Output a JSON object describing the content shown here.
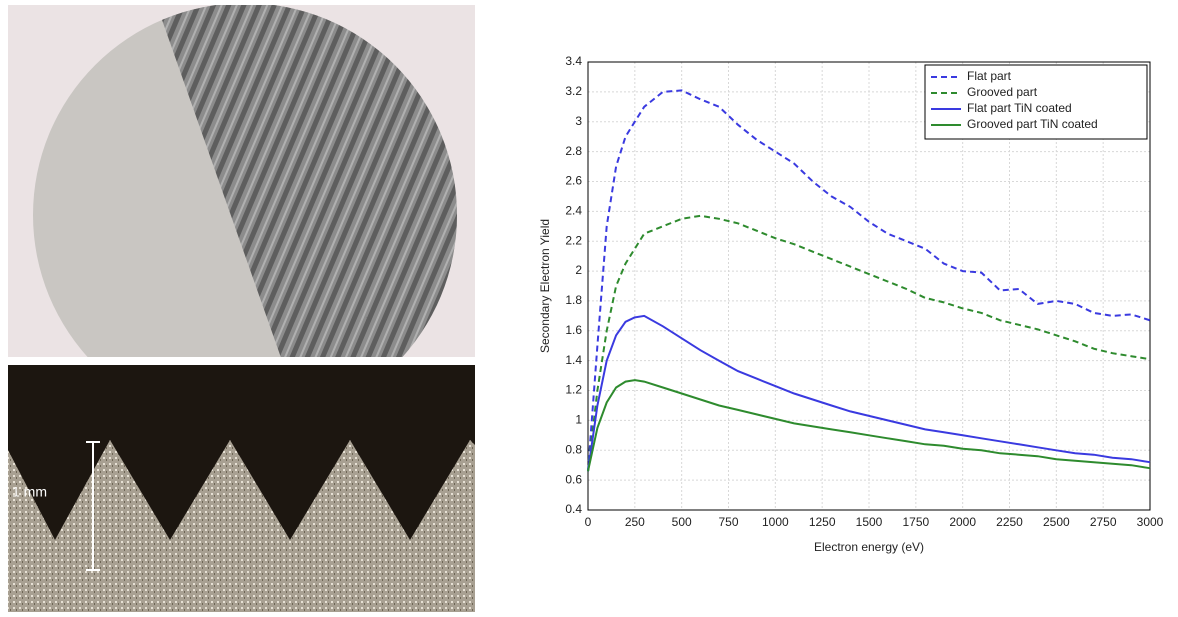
{
  "photo_annotation": "1 mm",
  "chart_data": {
    "type": "line",
    "xlabel": "Electron energy (eV)",
    "ylabel": "Secondary Electron Yield",
    "x": [
      0,
      50,
      100,
      150,
      200,
      250,
      300,
      400,
      500,
      600,
      700,
      800,
      900,
      1000,
      1100,
      1200,
      1300,
      1400,
      1500,
      1600,
      1700,
      1800,
      1900,
      2000,
      2100,
      2200,
      2300,
      2400,
      2500,
      2600,
      2700,
      2800,
      2900,
      3000
    ],
    "series": [
      {
        "name": "Flat part",
        "color": "#3a3ae0",
        "linestyle": "dashed",
        "values": [
          0.66,
          1.5,
          2.3,
          2.7,
          2.9,
          3.0,
          3.1,
          3.2,
          3.21,
          3.15,
          3.1,
          2.98,
          2.88,
          2.8,
          2.72,
          2.6,
          2.5,
          2.43,
          2.33,
          2.25,
          2.2,
          2.15,
          2.05,
          2.0,
          1.99,
          1.87,
          1.88,
          1.78,
          1.8,
          1.78,
          1.72,
          1.7,
          1.71,
          1.67
        ]
      },
      {
        "name": "Grooved part",
        "color": "#2e8b2e",
        "linestyle": "dashed",
        "values": [
          0.66,
          1.2,
          1.6,
          1.9,
          2.05,
          2.15,
          2.25,
          2.3,
          2.35,
          2.37,
          2.35,
          2.32,
          2.27,
          2.22,
          2.18,
          2.13,
          2.08,
          2.03,
          1.98,
          1.93,
          1.88,
          1.82,
          1.79,
          1.75,
          1.72,
          1.67,
          1.64,
          1.61,
          1.57,
          1.53,
          1.48,
          1.45,
          1.43,
          1.41
        ]
      },
      {
        "name": "Flat part TiN coated",
        "color": "#3a3ae0",
        "linestyle": "solid",
        "values": [
          0.66,
          1.1,
          1.4,
          1.57,
          1.66,
          1.69,
          1.7,
          1.63,
          1.55,
          1.47,
          1.4,
          1.33,
          1.28,
          1.23,
          1.18,
          1.14,
          1.1,
          1.06,
          1.03,
          1.0,
          0.97,
          0.94,
          0.92,
          0.9,
          0.88,
          0.86,
          0.84,
          0.82,
          0.8,
          0.78,
          0.77,
          0.75,
          0.74,
          0.72
        ]
      },
      {
        "name": "Grooved part TiN coated",
        "color": "#2e8b2e",
        "linestyle": "solid",
        "values": [
          0.66,
          0.95,
          1.12,
          1.22,
          1.26,
          1.27,
          1.26,
          1.22,
          1.18,
          1.14,
          1.1,
          1.07,
          1.04,
          1.01,
          0.98,
          0.96,
          0.94,
          0.92,
          0.9,
          0.88,
          0.86,
          0.84,
          0.83,
          0.81,
          0.8,
          0.78,
          0.77,
          0.76,
          0.74,
          0.73,
          0.72,
          0.71,
          0.7,
          0.68
        ]
      }
    ],
    "xlim": [
      0,
      3000
    ],
    "xticks": [
      0,
      250,
      500,
      750,
      1000,
      1250,
      1500,
      1750,
      2000,
      2250,
      2500,
      2750,
      3000
    ],
    "ylim": [
      0.4,
      3.4
    ],
    "yticks": [
      0.4,
      0.6,
      0.8,
      1,
      1.2,
      1.4,
      1.6,
      1.8,
      2,
      2.2,
      2.4,
      2.6,
      2.8,
      3,
      3.2,
      3.4
    ],
    "grid": true,
    "legend": "upper right"
  }
}
